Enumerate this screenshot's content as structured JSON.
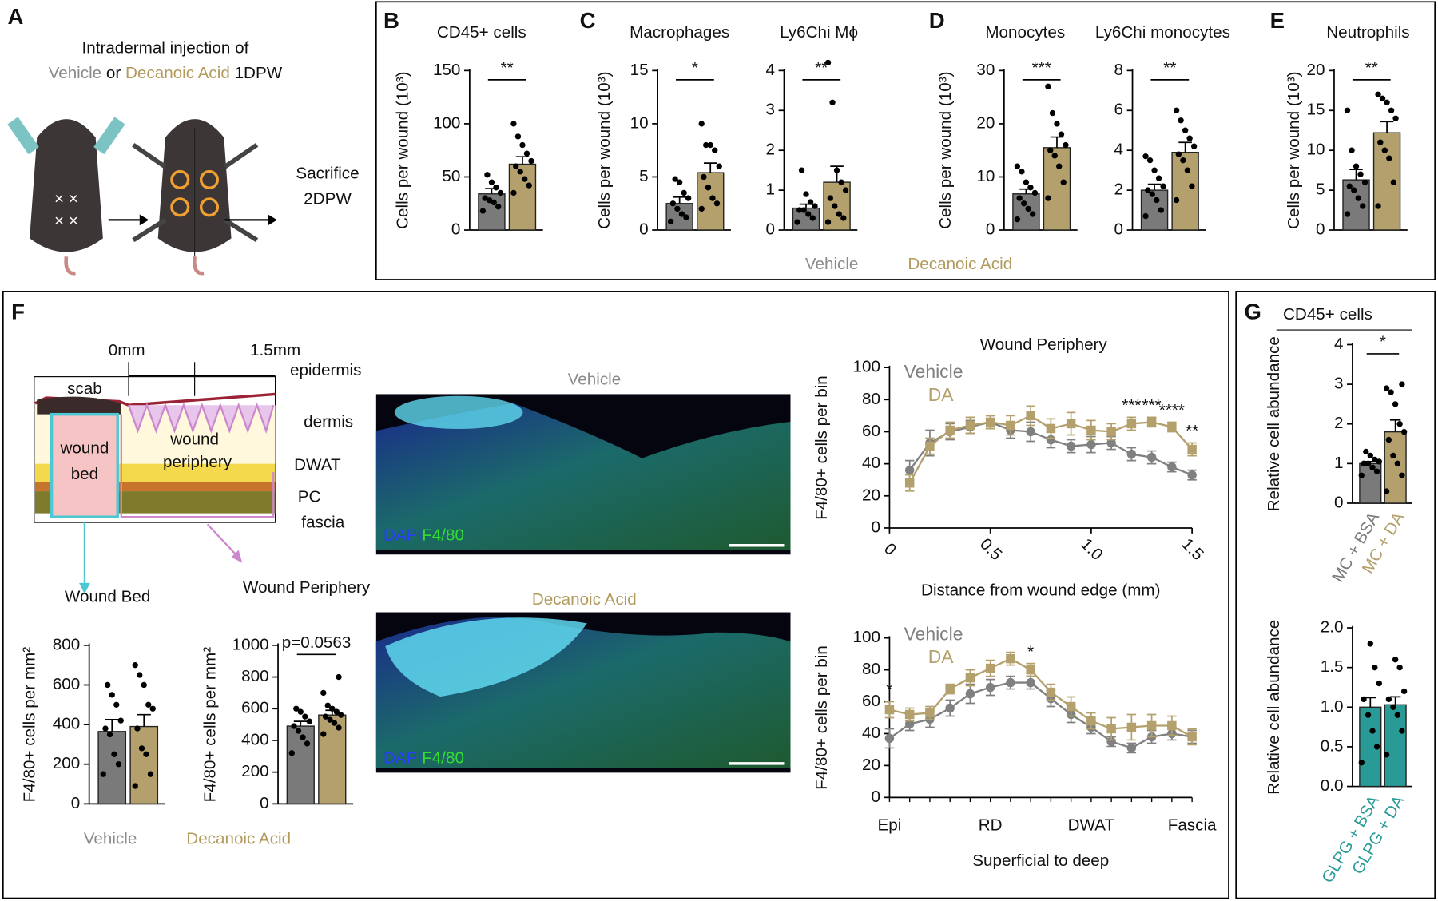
{
  "panel_labels": [
    "A",
    "B",
    "C",
    "D",
    "E",
    "F",
    "G"
  ],
  "panel_a": {
    "line1": "Intradermal injection of",
    "vehicle": "Vehicle",
    "or": "or",
    "decanoic": "Decanoic Acid",
    "dpw1": "1DPW",
    "sacrifice": "Sacrifice",
    "dpw2": "2DPW"
  },
  "legend_bce": [
    {
      "name": "Vehicle",
      "color": "#8a8a8a"
    },
    {
      "name": "Decanoic Acid",
      "color": "#b39b5e"
    }
  ],
  "legend_f": [
    {
      "name": "Vehicle",
      "color": "#8a8a8a"
    },
    {
      "name": "Decanoic Acid",
      "color": "#b39b5e"
    }
  ],
  "schematic": {
    "start": "0mm",
    "end": "1.5mm",
    "scab": "scab",
    "epidermis": "epidermis",
    "dermis": "dermis",
    "dwat": "DWAT",
    "pc": "PC",
    "fascia": "fascia",
    "wound_bed": [
      "wound",
      "bed"
    ],
    "wound_periphery": [
      "wound",
      "periphery"
    ]
  },
  "images": [
    {
      "title": "Vehicle",
      "stains": [
        "DAPI",
        "F4/80"
      ]
    },
    {
      "title": "Decanoic Acid",
      "stains": [
        "DAPI",
        "F4/80"
      ]
    }
  ],
  "chart_data": [
    {
      "type": "bar",
      "title": "CD45+ cells",
      "y_label": "Cells per wound (10³)",
      "ylim": [
        0,
        150
      ],
      "yticks": [
        0,
        50,
        100,
        150
      ],
      "values": [
        34,
        62
      ],
      "errors": [
        5,
        7
      ],
      "colors": [
        "#7a7a7a",
        "#b3a06c"
      ],
      "points": [
        [
          18,
          22,
          26,
          28,
          30,
          35,
          40,
          45,
          52
        ],
        [
          35,
          42,
          48,
          55,
          60,
          65,
          72,
          80,
          88,
          100
        ]
      ],
      "significance": "**"
    },
    {
      "type": "bar",
      "title": "Macrophages",
      "y_label": "Cells per wound (10³)",
      "ylim": [
        0,
        15
      ],
      "yticks": [
        0,
        5,
        10,
        15
      ],
      "values": [
        2.5,
        5.4
      ],
      "errors": [
        0.6,
        0.9
      ],
      "colors": [
        "#7a7a7a",
        "#b3a06c"
      ],
      "points": [
        [
          0.8,
          1.2,
          1.5,
          2,
          2.5,
          3,
          3.5,
          4.5,
          4.8
        ],
        [
          2,
          2.5,
          3,
          4,
          5,
          6,
          7.5,
          8,
          8,
          10
        ]
      ],
      "significance": "*"
    },
    {
      "type": "bar",
      "title": "Ly6Chi Mϕ",
      "ylim": [
        0,
        4
      ],
      "yticks": [
        0,
        1,
        2,
        3,
        4
      ],
      "values": [
        0.55,
        1.2
      ],
      "errors": [
        0.1,
        0.4
      ],
      "colors": [
        "#7a7a7a",
        "#b3a06c"
      ],
      "points": [
        [
          0.2,
          0.3,
          0.4,
          0.5,
          0.5,
          0.6,
          0.7,
          0.9,
          1.5
        ],
        [
          0.2,
          0.3,
          0.4,
          0.6,
          0.8,
          1,
          1.2,
          1.5,
          3.2,
          4.2
        ]
      ],
      "significance": "**"
    },
    {
      "type": "bar",
      "title": "Monocytes",
      "y_label": "Cells per wound (10³)",
      "ylim": [
        0,
        30
      ],
      "yticks": [
        0,
        10,
        20,
        30
      ],
      "values": [
        6.8,
        15.5
      ],
      "errors": [
        0.9,
        2
      ],
      "colors": [
        "#7a7a7a",
        "#b3a06c"
      ],
      "points": [
        [
          2,
          3,
          4,
          5,
          6,
          7,
          8,
          9,
          11,
          12
        ],
        [
          6,
          9,
          12,
          14,
          15,
          16,
          18,
          20,
          22,
          27
        ]
      ],
      "significance": "***"
    },
    {
      "type": "bar",
      "title": "Ly6Chi monocytes",
      "ylim": [
        0,
        8
      ],
      "yticks": [
        0,
        2,
        4,
        6,
        8
      ],
      "values": [
        2,
        3.9
      ],
      "errors": [
        0.3,
        0.5
      ],
      "colors": [
        "#7a7a7a",
        "#b3a06c"
      ],
      "points": [
        [
          0.7,
          1,
          1.5,
          1.8,
          2,
          2.2,
          2.6,
          3,
          3.5,
          3.7
        ],
        [
          1.5,
          2.2,
          3,
          3.5,
          3.8,
          4.2,
          4.6,
          5,
          5.5,
          6
        ]
      ],
      "significance": "**"
    },
    {
      "type": "bar",
      "title": "Neutrophils",
      "y_label": "Cells per wound (10³)",
      "ylim": [
        0,
        20
      ],
      "yticks": [
        0,
        5,
        10,
        15,
        20
      ],
      "values": [
        6.3,
        12.2
      ],
      "errors": [
        1.3,
        1.4
      ],
      "colors": [
        "#7a7a7a",
        "#b3a06c"
      ],
      "points": [
        [
          2,
          3,
          4,
          5,
          5.5,
          6,
          7,
          8,
          10,
          15
        ],
        [
          3,
          6,
          9,
          10,
          11,
          14,
          15,
          16,
          16.5,
          17
        ]
      ],
      "significance": "**"
    },
    {
      "type": "bar",
      "title": "Wound Bed",
      "y_label": "F4/80+ cells per mm²",
      "ylim": [
        0,
        800
      ],
      "yticks": [
        0,
        200,
        400,
        600,
        800
      ],
      "values": [
        365,
        390
      ],
      "errors": [
        60,
        60
      ],
      "colors": [
        "#7a7a7a",
        "#b3a06c"
      ],
      "points": [
        [
          150,
          200,
          250,
          350,
          380,
          420,
          500,
          550,
          600
        ],
        [
          90,
          150,
          250,
          280,
          380,
          480,
          500,
          600,
          650,
          700
        ]
      ]
    },
    {
      "type": "bar",
      "title": "Wound Periphery",
      "y_label": "F4/80+ cells per mm²",
      "ylim": [
        0,
        1000
      ],
      "yticks": [
        0,
        200,
        400,
        600,
        800,
        1000
      ],
      "values": [
        490,
        560
      ],
      "errors": [
        30,
        30
      ],
      "colors": [
        "#7a7a7a",
        "#b3a06c"
      ],
      "points": [
        [
          320,
          380,
          420,
          460,
          490,
          520,
          550,
          580,
          600
        ],
        [
          440,
          480,
          510,
          530,
          550,
          560,
          580,
          600,
          620,
          700,
          800
        ]
      ],
      "significance": "p=0.0563"
    },
    {
      "type": "line",
      "title": "Wound Periphery",
      "x_label": "Distance from wound edge (mm)",
      "y_label": "F4/80+ cells per bin",
      "x": [
        0.1,
        0.2,
        0.3,
        0.4,
        0.5,
        0.6,
        0.7,
        0.8,
        0.9,
        1.0,
        1.1,
        1.2,
        1.3,
        1.4,
        1.5
      ],
      "xlim": [
        0,
        1.5
      ],
      "xticks": [
        0,
        0.5,
        {
          "value": 1,
          "label": "1.0"
        },
        1.5
      ],
      "ylim": [
        0,
        100
      ],
      "yticks": [
        0,
        20,
        40,
        60,
        80,
        100
      ],
      "series": [
        {
          "name": "Vehicle",
          "color": "#808080",
          "values": [
            36,
            53,
            60,
            63,
            66,
            61,
            60,
            55,
            51,
            52,
            53,
            46,
            44,
            38,
            33
          ],
          "errors": [
            6,
            8,
            5,
            4,
            4,
            5,
            6,
            5,
            4,
            5,
            4,
            4,
            4,
            3,
            3
          ]
        },
        {
          "name": "DA",
          "color": "#b3a06c",
          "values": [
            28,
            51,
            61,
            64,
            66,
            64,
            70,
            62,
            65,
            61,
            60,
            65,
            66,
            63,
            49
          ],
          "errors": [
            5,
            5,
            5,
            5,
            4,
            6,
            6,
            6,
            7,
            6,
            5,
            4,
            3,
            3,
            4
          ]
        }
      ],
      "significance": [
        null,
        null,
        null,
        null,
        null,
        null,
        null,
        null,
        null,
        null,
        null,
        "***",
        "***",
        "****",
        "**"
      ]
    },
    {
      "type": "line",
      "x_label": "Superficial to deep",
      "y_label": "F4/80+ cells per bin",
      "categories": [
        "Epi",
        null,
        null,
        null,
        null,
        "RD",
        null,
        null,
        null,
        null,
        "DWAT",
        null,
        null,
        null,
        null,
        "Fascia"
      ],
      "ylim": [
        0,
        100
      ],
      "yticks": [
        0,
        20,
        40,
        60,
        80,
        100
      ],
      "series": [
        {
          "name": "Vehicle",
          "color": "#808080",
          "values": [
            37,
            46,
            49,
            56,
            65,
            69,
            72,
            72,
            62,
            52,
            44,
            35,
            31,
            38,
            40,
            38
          ],
          "errors": [
            6,
            4,
            5,
            5,
            6,
            5,
            4,
            4,
            5,
            5,
            4,
            3,
            3,
            4,
            4,
            4
          ]
        },
        {
          "name": "DA",
          "color": "#b3a06c",
          "values": [
            55,
            52,
            53,
            68,
            75,
            81,
            87,
            80,
            66,
            57,
            48,
            43,
            44,
            45,
            45,
            38
          ],
          "errors": [
            5,
            4,
            4,
            3,
            5,
            5,
            4,
            4,
            5,
            6,
            5,
            7,
            8,
            7,
            6,
            5
          ]
        }
      ],
      "significance": [
        "*",
        null,
        null,
        null,
        null,
        null,
        null,
        "*",
        null,
        null,
        null,
        null,
        null,
        null,
        null,
        null
      ]
    },
    {
      "type": "bar",
      "title": "CD45+ cells",
      "y_label": "Relative cell abundance",
      "categories": [
        "MC + BSA",
        "MC + DA"
      ],
      "ylim": [
        0,
        4
      ],
      "yticks": [
        0,
        1,
        2,
        3,
        4
      ],
      "values": [
        1,
        1.8
      ],
      "errors": [
        0.05,
        0.3
      ],
      "colors": [
        "#7a7a7a",
        "#b3a06c"
      ],
      "points": [
        [
          0.7,
          0.8,
          0.9,
          1,
          1,
          1.05,
          1.1,
          1.2,
          1.3
        ],
        [
          0.3,
          0.7,
          1,
          1.2,
          1.6,
          1.8,
          2,
          2.5,
          2.8,
          2.9,
          3
        ]
      ],
      "significance": "*"
    },
    {
      "type": "bar",
      "y_label": "Relative cell abundance",
      "categories": [
        "GLPG + BSA",
        "GLPG + DA"
      ],
      "ylim": [
        0,
        2
      ],
      "yticks": [
        {
          "value": 0,
          "label": "0.0"
        },
        {
          "value": 0.5,
          "label": "0.5"
        },
        {
          "value": 1,
          "label": "1.0"
        },
        {
          "value": 1.5,
          "label": "1.5"
        },
        {
          "value": 2,
          "label": "2.0"
        }
      ],
      "values": [
        1,
        1.03
      ],
      "errors": [
        0.12,
        0.1
      ],
      "colors": [
        "#2a9a96",
        "#2a9a96"
      ],
      "points": [
        [
          0.3,
          0.5,
          0.7,
          0.9,
          1.1,
          1.3,
          1.5,
          1.8
        ],
        [
          0.4,
          0.7,
          0.9,
          1,
          1.1,
          1.2,
          1.5,
          1.6
        ]
      ]
    }
  ]
}
